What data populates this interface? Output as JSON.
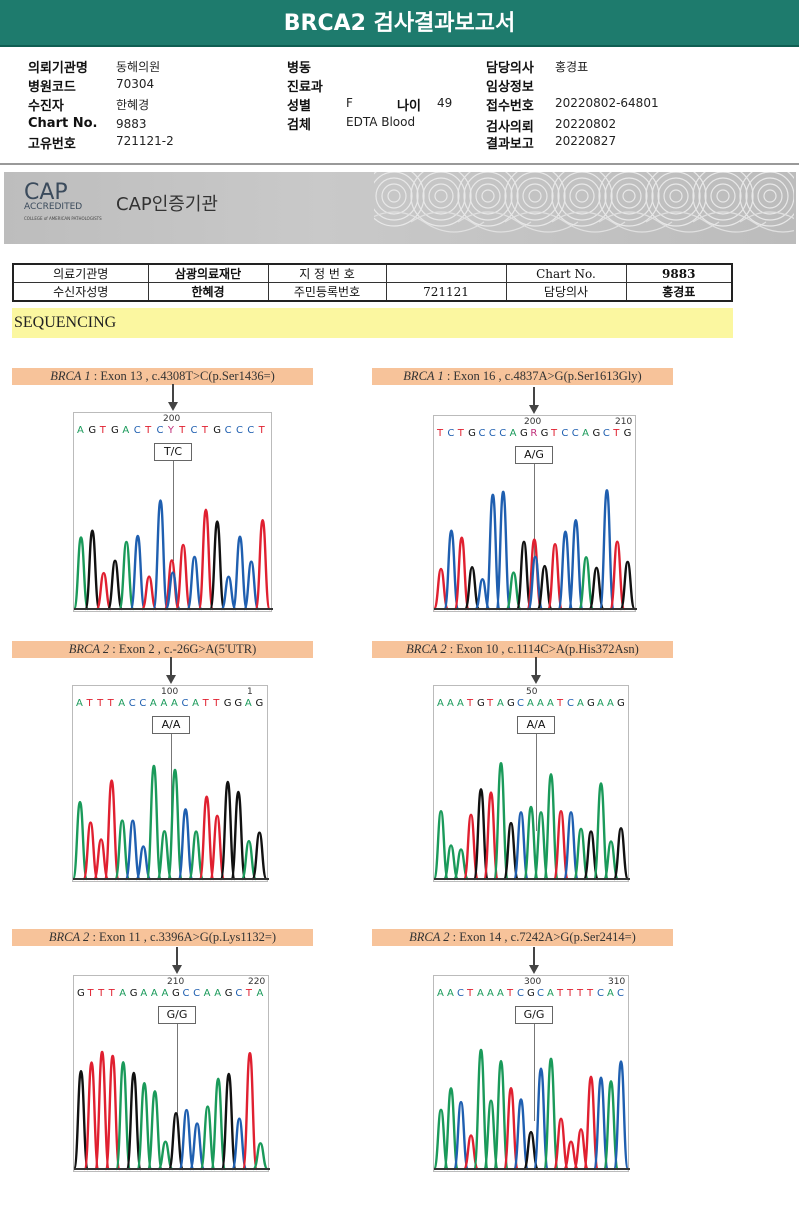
{
  "title": "BRCA2 검사결과보고서",
  "header": {
    "col1": [
      {
        "label": "의뢰기관명",
        "value": "동해의원"
      },
      {
        "label": "병원코드",
        "value": "70304"
      },
      {
        "label": "수진자",
        "value": "한혜경"
      },
      {
        "label": "Chart No.",
        "value": "9883"
      },
      {
        "label": "고유번호",
        "value": "721121-2"
      }
    ],
    "col2": [
      {
        "label": "병동",
        "value": ""
      },
      {
        "label": "진료과",
        "value": ""
      },
      {
        "label": "성별",
        "value": "F"
      },
      {
        "label": "검체",
        "value": "EDTA Blood"
      }
    ],
    "age": {
      "label": "나이",
      "value": "49"
    },
    "col3": [
      {
        "label": "담당의사",
        "value": "홍경표"
      },
      {
        "label": "임상정보",
        "value": ""
      },
      {
        "label": "접수번호",
        "value": "20220802-64801"
      },
      {
        "label": "검사의뢰",
        "value": "20220802"
      },
      {
        "label": "결과보고",
        "value": "20220827"
      }
    ]
  },
  "banner": {
    "logo_text": "CAP",
    "logo_sub": "ACCREDITED",
    "logo_org": "COLLEGE of AMERICAN PATHOLOGISTS",
    "name": "CAP인증기관"
  },
  "info_table": {
    "row1": [
      "의료기관명",
      "삼광의료재단",
      "지 정 번 호",
      "",
      "Chart No.",
      "9883"
    ],
    "row2": [
      "수신자성명",
      "한혜경",
      "주민등록번호",
      "721121",
      "담당의사",
      "홍경표"
    ]
  },
  "section": "SEQUENCING",
  "colors": {
    "A": "#1a9a5a",
    "C": "#1f5fb0",
    "G": "#111111",
    "T": "#e02030"
  },
  "panels": [
    {
      "gene": "BRCA 1",
      "desc": " : Exon 13 , c.4308T>C(p.Ser1436=)",
      "bases": "AGTGACTCYTCTGCCCT",
      "positions": [
        "200"
      ],
      "genotype": "T/C"
    },
    {
      "gene": "BRCA 1",
      "desc": " : Exon 16 , c.4837A>G(p.Ser1613Gly)",
      "bases": "TCTGCCCAGRGTCCAGCTG",
      "positions": [
        "200",
        "210"
      ],
      "genotype": "A/G"
    },
    {
      "gene": "BRCA 2",
      "desc": " : Exon 2 , c.-26G>A(5'UTR)",
      "bases": "ATTTACCAAACATTGGAG",
      "positions": [
        "100",
        "1"
      ],
      "genotype": "A/A"
    },
    {
      "gene": "BRCA 2",
      "desc": " : Exon 10 , c.1114C>A(p.His372Asn)",
      "bases": "AAATGTAGCAAATCAGAAG",
      "positions": [
        "50"
      ],
      "genotype": "A/A"
    },
    {
      "gene": "BRCA 2",
      "desc": " : Exon 11 , c.3396A>G(p.Lys1132=)",
      "bases": "GTTTAGAAAGCCAAGCTA",
      "positions": [
        "210",
        "220"
      ],
      "genotype": "G/G"
    },
    {
      "gene": "BRCA 2",
      "desc": " : Exon 14 , c.7242A>G(p.Ser2414=)",
      "bases": "AACTAAATCGCATTTTCAC",
      "positions": [
        "300",
        "310"
      ],
      "genotype": "G/G"
    }
  ]
}
